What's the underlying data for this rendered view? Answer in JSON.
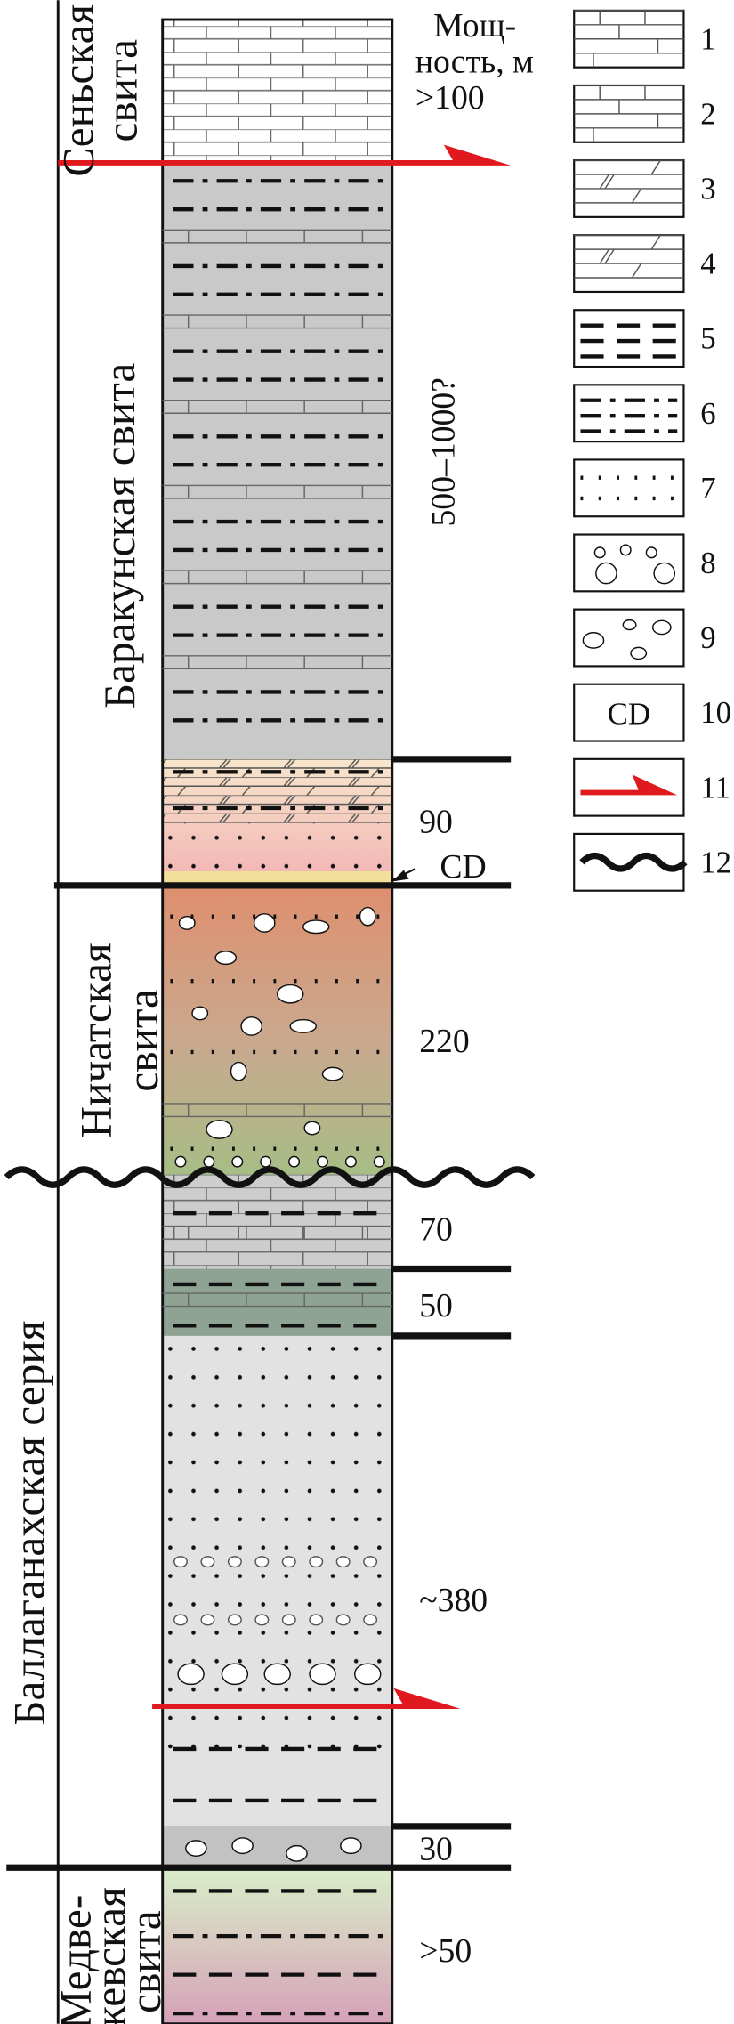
{
  "header": {
    "lines": [
      "Мощ-",
      "ность, м"
    ]
  },
  "formations": [
    {
      "lines": [
        "Сеньская",
        "свита"
      ]
    },
    {
      "lines": [
        "Баракунская свита"
      ]
    },
    {
      "lines": [
        "Ничатская",
        "свита"
      ]
    },
    {
      "lines": [
        "Баллаганахская серия"
      ]
    },
    {
      "lines": [
        "Медве-",
        "жевская",
        "свита"
      ]
    }
  ],
  "thicknesses": [
    ">100",
    "500–1000?",
    "90",
    "220",
    "70",
    "50",
    "~380",
    "30",
    ">50"
  ],
  "annotation": "CD",
  "legend": {
    "numbers": [
      "1",
      "2",
      "3",
      "4",
      "5",
      "6",
      "7",
      "8",
      "9",
      "10",
      "11",
      "12"
    ],
    "symbol_10": "CD"
  }
}
